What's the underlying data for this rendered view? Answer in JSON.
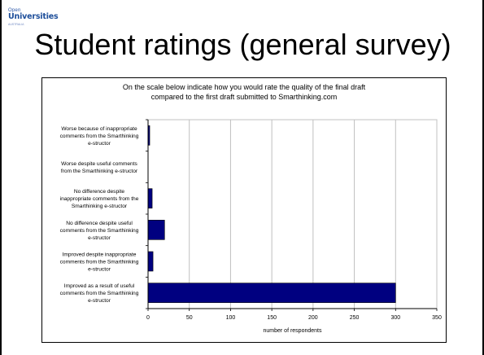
{
  "slide": {
    "logo_top": "Open",
    "logo_main": "Universities",
    "logo_sub": "AUSTRALIA",
    "title": "Student ratings (general survey)"
  },
  "colors": {
    "bar_fill": "#000080",
    "grid": "#c0c0c0",
    "logo": "#1d4e9a"
  },
  "chart_data": {
    "type": "bar",
    "orientation": "horizontal",
    "title": "On the scale below indicate how you would rate the quality of the final draft compared to the first draft submitted to Smarthinking.com",
    "title_lines": [
      "On the scale below indicate how you would rate the quality of the final draft",
      "compared to the first draft submitted to Smarthinking.com"
    ],
    "xlabel": "number of respondents",
    "ylabel": "",
    "xlim": [
      0,
      350
    ],
    "xticks": [
      0,
      50,
      100,
      150,
      200,
      250,
      300,
      350
    ],
    "grid": true,
    "categories": [
      "Worse because of inappropriate comments from the Smarthinking e-structor",
      "Worse despite useful comments from the Smarthinking e-structor",
      "No difference despite inappropriate comments from the Smarthinking e-structor",
      "No difference despite useful comments from the Smarthinking e-structor",
      "Improved despite inappropriate comments from the Smarthinking e-structor",
      "Improved as a result of useful comments from the Smarthinking e-structor"
    ],
    "category_lines": [
      [
        "Worse because of inappropriate",
        "comments from the Smarthinking",
        "e-structor"
      ],
      [
        "Worse despite useful comments",
        "from the Smarthinking e-structor"
      ],
      [
        "No difference despite",
        "inappropriate comments from the",
        "Smarthinking e-structor"
      ],
      [
        "No difference despite useful",
        "comments from the Smarthinking",
        "e-structor"
      ],
      [
        "Improved despite inappropriate",
        "comments from the Smarthinking",
        "e-structor"
      ],
      [
        "Improved as a result of useful",
        "comments from the Smarthinking",
        "e-structor"
      ]
    ],
    "values": [
      2,
      0,
      5,
      20,
      6,
      300
    ]
  }
}
